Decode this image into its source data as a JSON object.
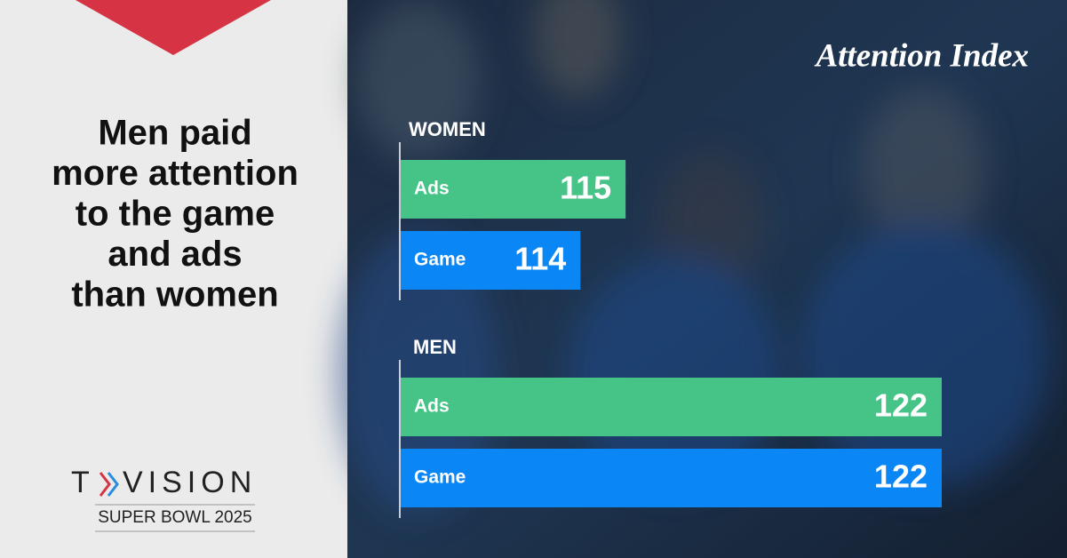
{
  "headline_lines": [
    "Men paid",
    "more attention",
    "to the game",
    "and ads",
    "than women"
  ],
  "brand": [
    "T",
    "VISION"
  ],
  "event": "SUPER BOWL 2025",
  "chart_data": {
    "type": "bar",
    "orientation": "horizontal",
    "title": "Attention Index",
    "categories": [
      "Ads",
      "Game"
    ],
    "colors": [
      "#46c487",
      "#0b86f5"
    ],
    "series": [
      {
        "name": "WOMEN",
        "values": [
          115,
          114
        ]
      },
      {
        "name": "MEN",
        "values": [
          122,
          122
        ]
      }
    ],
    "xlim": [
      110,
      122
    ]
  }
}
